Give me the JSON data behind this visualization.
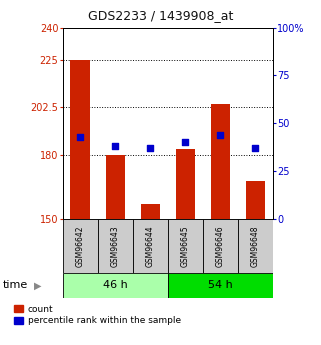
{
  "title": "GDS2233 / 1439908_at",
  "samples": [
    "GSM96642",
    "GSM96643",
    "GSM96644",
    "GSM96645",
    "GSM96646",
    "GSM96648"
  ],
  "count_values": [
    225,
    180,
    157,
    183,
    204,
    168
  ],
  "percentile_values": [
    43,
    38,
    37,
    40,
    44,
    37
  ],
  "ylim_left": [
    150,
    240
  ],
  "ylim_right": [
    0,
    100
  ],
  "yticks_left": [
    150,
    180,
    202.5,
    225,
    240
  ],
  "ytick_labels_left": [
    "150",
    "180",
    "202.5",
    "225",
    "240"
  ],
  "yticks_right": [
    0,
    25,
    50,
    75,
    100
  ],
  "ytick_labels_right": [
    "0",
    "25",
    "50",
    "75",
    "100%"
  ],
  "groups": [
    {
      "label": "46 h",
      "indices": [
        0,
        1,
        2
      ],
      "color": "#aaffaa"
    },
    {
      "label": "54 h",
      "indices": [
        3,
        4,
        5
      ],
      "color": "#00dd00"
    }
  ],
  "bar_color": "#cc2200",
  "dot_color": "#0000cc",
  "bar_baseline": 150,
  "grid_lines": [
    180,
    202.5,
    225
  ],
  "legend_count_label": "count",
  "legend_percentile_label": "percentile rank within the sample",
  "time_label": "time",
  "left_axis_color": "#cc2200",
  "right_axis_color": "#0000cc",
  "title_color": "#111111"
}
